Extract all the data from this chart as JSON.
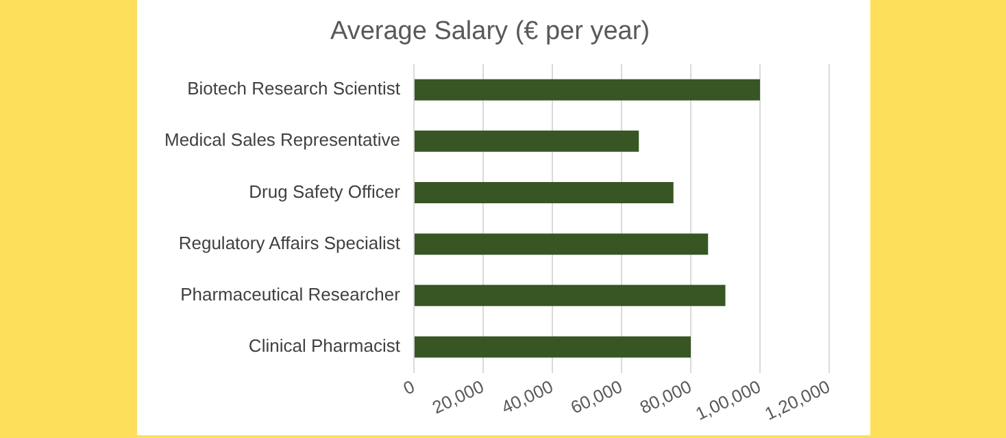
{
  "chart_data": {
    "type": "bar",
    "orientation": "horizontal",
    "title": "Average Salary (€ per year)",
    "categories": [
      "Biotech Research Scientist",
      "Medical Sales Representative",
      "Drug Safety Officer",
      "Regulatory Affairs Specialist",
      "Pharmaceutical Researcher",
      "Clinical Pharmacist"
    ],
    "values": [
      100000,
      65000,
      75000,
      85000,
      90000,
      80000
    ],
    "color": "#375623",
    "xlim": [
      0,
      120000
    ],
    "xticks": [
      0,
      {
        "value": 20000,
        "label": "20,000"
      },
      {
        "value": 40000,
        "label": "40,000"
      },
      {
        "value": 60000,
        "label": "60,000"
      },
      {
        "value": 80000,
        "label": "80,000"
      },
      {
        "value": 100000,
        "label": "1,00,000"
      },
      {
        "value": 120000,
        "label": "1,20,000"
      }
    ],
    "grid": "x",
    "legend": false
  }
}
